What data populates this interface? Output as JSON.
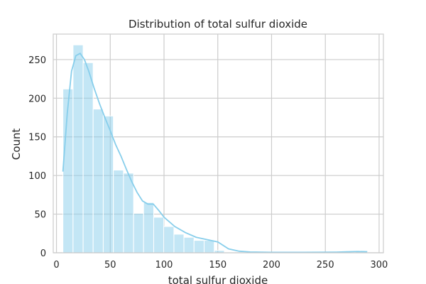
{
  "chart_data": {
    "type": "bar",
    "title": "Distribution of total sulfur dioxide",
    "xlabel": "total sulfur dioxide",
    "ylabel": "Count",
    "xlim": [
      -3,
      304
    ],
    "ylim": [
      0,
      283
    ],
    "xticks": [
      0,
      50,
      100,
      150,
      200,
      250,
      300
    ],
    "yticks": [
      0,
      50,
      100,
      150,
      200,
      250
    ],
    "grid": true,
    "color": "#87ceeb",
    "bins": [
      {
        "x0": 6,
        "x1": 15.4,
        "count": 212
      },
      {
        "x0": 15.4,
        "x1": 24.8,
        "count": 269
      },
      {
        "x0": 24.8,
        "x1": 34.1,
        "count": 246
      },
      {
        "x0": 34.1,
        "x1": 43.5,
        "count": 186
      },
      {
        "x0": 43.5,
        "x1": 52.9,
        "count": 177
      },
      {
        "x0": 52.9,
        "x1": 62.3,
        "count": 107
      },
      {
        "x0": 62.3,
        "x1": 71.7,
        "count": 103
      },
      {
        "x0": 71.7,
        "x1": 81.0,
        "count": 51
      },
      {
        "x0": 81.0,
        "x1": 90.4,
        "count": 65
      },
      {
        "x0": 90.4,
        "x1": 99.8,
        "count": 46
      },
      {
        "x0": 99.8,
        "x1": 109.2,
        "count": 34
      },
      {
        "x0": 109.2,
        "x1": 118.5,
        "count": 24
      },
      {
        "x0": 118.5,
        "x1": 127.9,
        "count": 20
      },
      {
        "x0": 127.9,
        "x1": 137.3,
        "count": 16
      },
      {
        "x0": 137.3,
        "x1": 146.7,
        "count": 16
      },
      {
        "x0": 146.7,
        "x1": 156.1,
        "count": 3
      },
      {
        "x0": 156.1,
        "x1": 165.4,
        "count": 1
      },
      {
        "x0": 165.4,
        "x1": 174.8,
        "count": 0
      },
      {
        "x0": 174.8,
        "x1": 184.2,
        "count": 1
      },
      {
        "x0": 184.2,
        "x1": 193.6,
        "count": 0
      },
      {
        "x0": 193.6,
        "x1": 203.0,
        "count": 0
      },
      {
        "x0": 203.0,
        "x1": 212.3,
        "count": 0
      },
      {
        "x0": 212.3,
        "x1": 221.7,
        "count": 0
      },
      {
        "x0": 221.7,
        "x1": 231.1,
        "count": 0
      },
      {
        "x0": 231.1,
        "x1": 240.5,
        "count": 0
      },
      {
        "x0": 240.5,
        "x1": 249.8,
        "count": 0
      },
      {
        "x0": 249.8,
        "x1": 259.2,
        "count": 0
      },
      {
        "x0": 259.2,
        "x1": 268.6,
        "count": 0
      },
      {
        "x0": 268.6,
        "x1": 278.0,
        "count": 1
      },
      {
        "x0": 278.0,
        "x1": 289.0,
        "count": 2
      }
    ],
    "kde": {
      "x": [
        6,
        10,
        14,
        18,
        22,
        26,
        30,
        35,
        40,
        45,
        50,
        55,
        60,
        65,
        70,
        75,
        80,
        85,
        90,
        95,
        100,
        110,
        120,
        130,
        140,
        150,
        160,
        170,
        180,
        200,
        230,
        260,
        270,
        280,
        289
      ],
      "y": [
        105,
        180,
        235,
        255,
        258,
        250,
        235,
        213,
        193,
        175,
        158,
        140,
        125,
        108,
        92,
        78,
        67,
        63,
        63,
        55,
        46,
        34,
        26,
        20,
        17,
        14,
        5,
        2,
        1,
        0.5,
        0.5,
        0.8,
        1.2,
        1.6,
        1.4
      ]
    }
  }
}
